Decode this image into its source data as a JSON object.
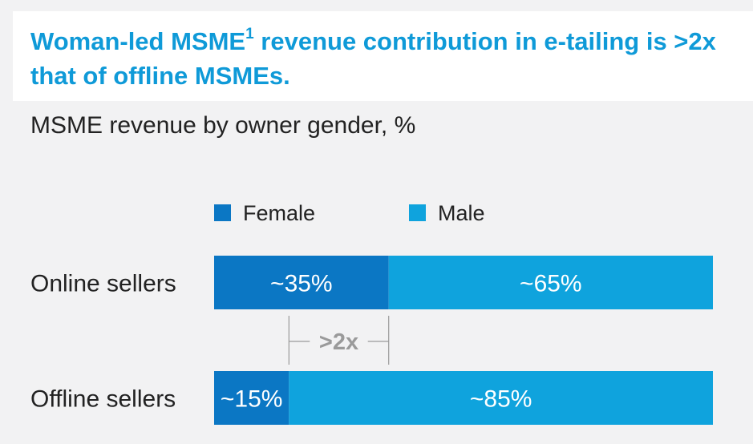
{
  "header": {
    "title_pre": "Woman-led MSME",
    "title_sup": "1",
    "title_post": " revenue contribution in e-tailing is >2x that of offline MSMEs."
  },
  "chart_data": {
    "type": "bar",
    "orientation": "horizontal",
    "stacked": true,
    "percent": true,
    "title": "MSME revenue by owner gender, %",
    "categories": [
      "Online sellers",
      "Offline sellers"
    ],
    "series": [
      {
        "name": "Female",
        "color": "#0b77c4",
        "values": [
          35,
          15
        ],
        "labels": [
          "~35%",
          "~15%"
        ]
      },
      {
        "name": "Male",
        "color": "#0fa3dd",
        "values": [
          65,
          85
        ],
        "labels": [
          "~65%",
          "~85%"
        ]
      }
    ],
    "annotation": ">2x",
    "legend_position": "top",
    "xlim": [
      0,
      100
    ]
  }
}
